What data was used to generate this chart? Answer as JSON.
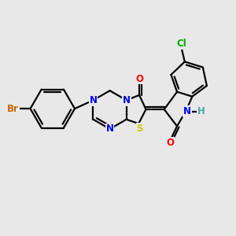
{
  "bg": "#e8e8e8",
  "bc": "#000000",
  "bw": 1.6,
  "atom_colors": {
    "N": "#0000ff",
    "O": "#ff0000",
    "S": "#cccc00",
    "Br": "#cc6600",
    "Cl": "#00aa00",
    "H": "#44aaaa",
    "C": "#000000"
  },
  "fs": 8.5
}
